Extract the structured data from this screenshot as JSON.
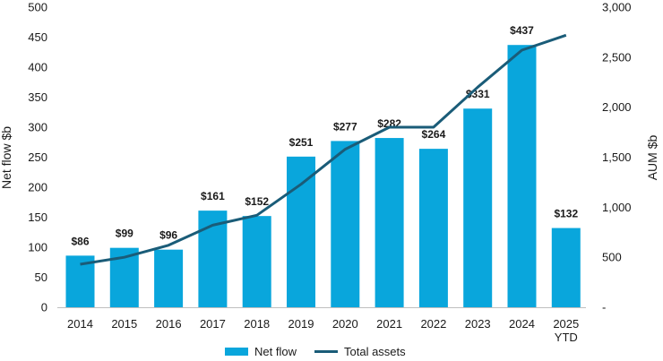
{
  "chart_data": {
    "type": "bar",
    "categories": [
      "2014",
      "2015",
      "2016",
      "2017",
      "2018",
      "2019",
      "2020",
      "2021",
      "2022",
      "2023",
      "2024",
      "2025 YTD"
    ],
    "series": [
      {
        "name": "Net flow",
        "type": "bar",
        "axis": "left",
        "values": [
          86,
          99,
          96,
          161,
          152,
          251,
          277,
          282,
          264,
          331,
          437,
          132
        ],
        "labels": [
          "$86",
          "$99",
          "$96",
          "$161",
          "$152",
          "$251",
          "$277",
          "$282",
          "$264",
          "$331",
          "$437",
          "$132"
        ]
      },
      {
        "name": "Total assets",
        "type": "line",
        "axis": "right",
        "values": [
          430,
          500,
          620,
          820,
          920,
          1230,
          1580,
          1800,
          1800,
          2200,
          2570,
          2720
        ]
      }
    ],
    "ylabel": "Net flow $b",
    "y2label": "AUM $b",
    "ylim": [
      0,
      500
    ],
    "y2lim": [
      0,
      3000
    ],
    "y_ticks": [
      "0",
      "50",
      "100",
      "150",
      "200",
      "250",
      "300",
      "350",
      "400",
      "450",
      "500"
    ],
    "y2_ticks": [
      "-",
      "500",
      "1,000",
      "1,500",
      "2,000",
      "2,500",
      "3,000"
    ],
    "legend_position": "bottom-center",
    "colors": {
      "bar": "#09a6dc",
      "line": "#1a5c78"
    },
    "grid": false
  }
}
